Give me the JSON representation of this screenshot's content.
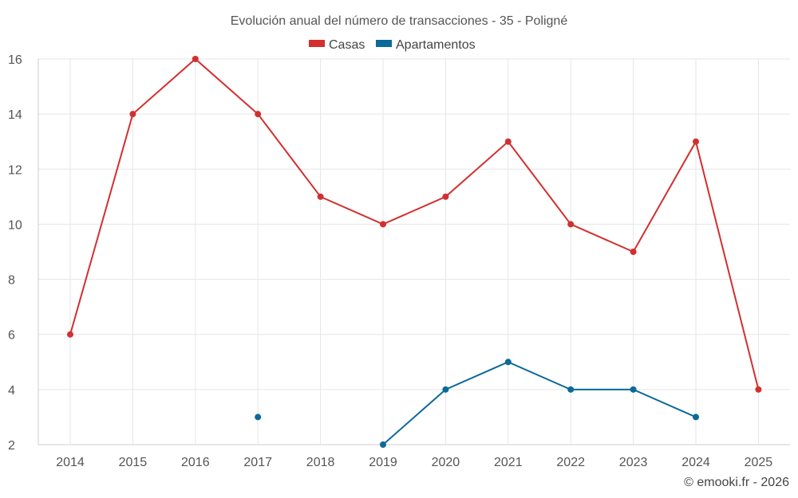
{
  "chart_data": {
    "type": "line",
    "title": "Evolución anual del número de transacciones - 35 - Poligné",
    "xlabel": "",
    "ylabel": "",
    "categories": [
      "2014",
      "2015",
      "2016",
      "2017",
      "2018",
      "2019",
      "2020",
      "2021",
      "2022",
      "2023",
      "2024",
      "2025"
    ],
    "ylim": [
      2,
      16
    ],
    "yticks": [
      2,
      4,
      6,
      8,
      10,
      12,
      14,
      16
    ],
    "grid": true,
    "legend_position": "top-center",
    "series": [
      {
        "name": "Casas",
        "color": "#d32f2f",
        "values": [
          6,
          14,
          16,
          14,
          11,
          10,
          11,
          13,
          10,
          9,
          13,
          4
        ]
      },
      {
        "name": "Apartamentos",
        "color": "#0b6a9a",
        "values": [
          null,
          null,
          null,
          3,
          null,
          2,
          4,
          5,
          4,
          4,
          3,
          null
        ]
      }
    ]
  },
  "credit": "© emooki.fr - 2026"
}
